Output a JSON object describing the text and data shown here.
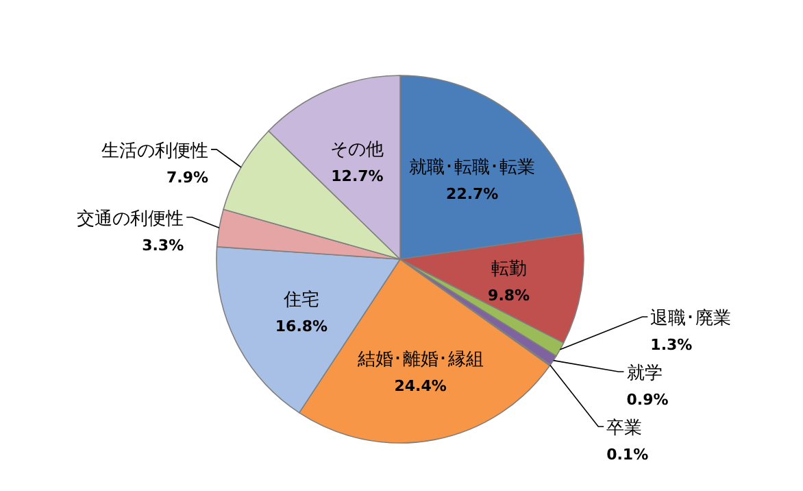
{
  "chart_data": {
    "type": "pie",
    "categories": [
      "就職･転職･転業",
      "転勤",
      "退職･廃業",
      "就学",
      "卒業",
      "結婚･離婚･縁組",
      "住宅",
      "交通の利便性",
      "生活の利便性",
      "その他"
    ],
    "values": [
      22.7,
      9.8,
      1.3,
      0.9,
      0.1,
      24.4,
      16.8,
      3.3,
      7.9,
      12.7
    ],
    "value_labels": [
      "22.7%",
      "9.8%",
      "1.3%",
      "0.9%",
      "0.1%",
      "24.4%",
      "16.8%",
      "3.3%",
      "7.9%",
      "12.7%"
    ],
    "colors": [
      "#4a7ebb",
      "#c0504d",
      "#9bbb59",
      "#7f63a1",
      "#4bacc6",
      "#f79646",
      "#a9c0e6",
      "#e6a5a5",
      "#d3e6b4",
      "#c7b8dc"
    ]
  }
}
